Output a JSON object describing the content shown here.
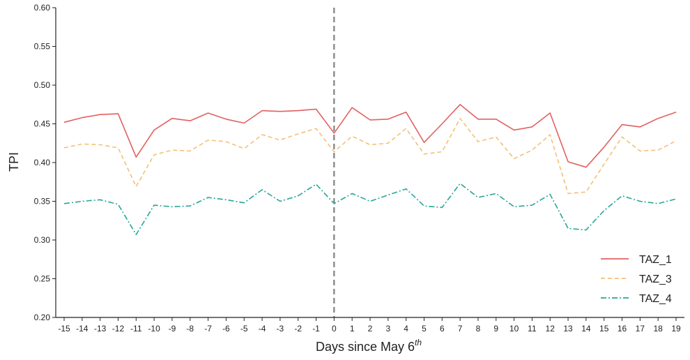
{
  "chart_data": {
    "type": "line",
    "xlabel": "Days since May 6",
    "xlabel_superscript": "th",
    "ylabel": "TPI",
    "xlim": [
      -15,
      19
    ],
    "ylim": [
      0.2,
      0.6
    ],
    "x": [
      -15,
      -14,
      -13,
      -12,
      -11,
      -10,
      -9,
      -8,
      -7,
      -6,
      -5,
      -4,
      -3,
      -2,
      -1,
      0,
      1,
      2,
      3,
      4,
      5,
      6,
      7,
      8,
      9,
      10,
      11,
      12,
      13,
      14,
      15,
      16,
      17,
      18,
      19
    ],
    "x_tick_labels": [
      "-15",
      "-14",
      "-13",
      "-12",
      "-11",
      "-10",
      "-9",
      "-8",
      "-7",
      "-6",
      "-5",
      "-4",
      "-3",
      "-2",
      "-1",
      "0",
      "1",
      "2",
      "3",
      "4",
      "5",
      "6",
      "7",
      "8",
      "9",
      "10",
      "11",
      "12",
      "13",
      "14",
      "15",
      "16",
      "17",
      "18",
      "19"
    ],
    "y_ticks": [
      0.2,
      0.25,
      0.3,
      0.35,
      0.4,
      0.45,
      0.5,
      0.55,
      0.6
    ],
    "y_tick_labels": [
      "0.20",
      "0.25",
      "0.30",
      "0.35",
      "0.40",
      "0.45",
      "0.50",
      "0.55",
      "0.60"
    ],
    "vline_x": 0,
    "legend_position": "bottom-right",
    "grid": false,
    "series": [
      {
        "name": "TAZ_1",
        "color": "#e26060",
        "dash": "solid",
        "values": [
          0.452,
          0.458,
          0.462,
          0.463,
          0.407,
          0.442,
          0.457,
          0.454,
          0.464,
          0.456,
          0.451,
          0.467,
          0.466,
          0.467,
          0.469,
          0.438,
          0.471,
          0.455,
          0.456,
          0.465,
          0.426,
          0.45,
          0.475,
          0.456,
          0.456,
          0.442,
          0.446,
          0.464,
          0.401,
          0.394,
          0.42,
          0.449,
          0.446,
          0.457,
          0.465
        ]
      },
      {
        "name": "TAZ_3",
        "color": "#f3c077",
        "dash": "dashed",
        "values": [
          0.419,
          0.424,
          0.423,
          0.419,
          0.369,
          0.41,
          0.416,
          0.415,
          0.429,
          0.427,
          0.418,
          0.436,
          0.429,
          0.437,
          0.444,
          0.414,
          0.434,
          0.423,
          0.425,
          0.444,
          0.411,
          0.414,
          0.457,
          0.427,
          0.433,
          0.405,
          0.416,
          0.436,
          0.36,
          0.362,
          0.398,
          0.433,
          0.415,
          0.416,
          0.428
        ]
      },
      {
        "name": "TAZ_4",
        "color": "#26a69a",
        "dash": "dashdot",
        "values": [
          0.347,
          0.35,
          0.352,
          0.346,
          0.307,
          0.345,
          0.343,
          0.344,
          0.355,
          0.352,
          0.348,
          0.365,
          0.35,
          0.357,
          0.372,
          0.347,
          0.36,
          0.35,
          0.358,
          0.366,
          0.344,
          0.342,
          0.373,
          0.355,
          0.36,
          0.343,
          0.345,
          0.359,
          0.315,
          0.313,
          0.338,
          0.357,
          0.35,
          0.347,
          0.353
        ]
      }
    ]
  }
}
